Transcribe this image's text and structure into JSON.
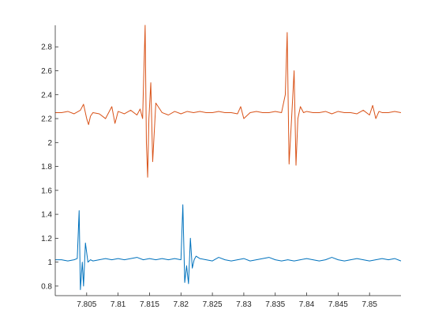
{
  "chart_data": {
    "type": "line",
    "title": "",
    "xlabel": "",
    "ylabel": "",
    "xlim": [
      7.8,
      7.855
    ],
    "ylim": [
      0.72,
      2.98
    ],
    "grid": false,
    "legend": "none",
    "x_ticks": [
      7.805,
      7.81,
      7.815,
      7.82,
      7.825,
      7.83,
      7.835,
      7.84,
      7.845,
      7.85
    ],
    "x_tick_labels": [
      "7.805",
      "7.81",
      "7.815",
      "7.82",
      "7.825",
      "7.83",
      "7.835",
      "7.84",
      "7.845",
      "7.85"
    ],
    "y_ticks": [
      0.8,
      1.0,
      1.2,
      1.4,
      1.6,
      1.8,
      2.0,
      2.2,
      2.4,
      2.6,
      2.8
    ],
    "y_tick_labels": [
      "0.8",
      "1",
      "1.2",
      "1.4",
      "1.6",
      "1.8",
      "2",
      "2.2",
      "2.4",
      "2.6",
      "2.8"
    ],
    "series": [
      {
        "color": "#D95319",
        "x": [
          7.8,
          7.801,
          7.802,
          7.803,
          7.804,
          7.8045,
          7.805,
          7.8053,
          7.8056,
          7.806,
          7.807,
          7.808,
          7.809,
          7.8095,
          7.81,
          7.8105,
          7.811,
          7.812,
          7.813,
          7.8135,
          7.8139,
          7.8141,
          7.8143,
          7.8145,
          7.8147,
          7.8149,
          7.8152,
          7.8155,
          7.816,
          7.817,
          7.818,
          7.819,
          7.82,
          7.821,
          7.822,
          7.823,
          7.824,
          7.825,
          7.826,
          7.827,
          7.828,
          7.829,
          7.8295,
          7.83,
          7.831,
          7.832,
          7.833,
          7.834,
          7.835,
          7.836,
          7.8366,
          7.8369,
          7.8372,
          7.8376,
          7.838,
          7.8383,
          7.8386,
          7.839,
          7.8395,
          7.84,
          7.841,
          7.842,
          7.843,
          7.844,
          7.845,
          7.846,
          7.847,
          7.848,
          7.849,
          7.85,
          7.8505,
          7.851,
          7.8515,
          7.852,
          7.853,
          7.854,
          7.855
        ],
        "y": [
          2.25,
          2.25,
          2.26,
          2.24,
          2.27,
          2.32,
          2.2,
          2.15,
          2.22,
          2.25,
          2.24,
          2.2,
          2.3,
          2.16,
          2.26,
          2.25,
          2.24,
          2.27,
          2.23,
          2.28,
          2.2,
          2.6,
          2.98,
          2.0,
          1.71,
          2.2,
          2.5,
          1.84,
          2.33,
          2.25,
          2.23,
          2.26,
          2.24,
          2.26,
          2.25,
          2.26,
          2.25,
          2.25,
          2.26,
          2.25,
          2.25,
          2.24,
          2.3,
          2.2,
          2.25,
          2.26,
          2.25,
          2.25,
          2.26,
          2.25,
          2.4,
          2.92,
          1.82,
          2.2,
          2.6,
          1.81,
          2.2,
          2.3,
          2.25,
          2.26,
          2.25,
          2.25,
          2.26,
          2.24,
          2.26,
          2.25,
          2.25,
          2.24,
          2.27,
          2.23,
          2.31,
          2.2,
          2.26,
          2.25,
          2.25,
          2.26,
          2.25
        ]
      },
      {
        "color": "#0072BD",
        "x": [
          7.8,
          7.801,
          7.802,
          7.803,
          7.8035,
          7.8038,
          7.804,
          7.8043,
          7.8045,
          7.8048,
          7.8052,
          7.8056,
          7.806,
          7.807,
          7.808,
          7.809,
          7.81,
          7.811,
          7.812,
          7.813,
          7.814,
          7.815,
          7.816,
          7.817,
          7.818,
          7.819,
          7.82,
          7.8203,
          7.8206,
          7.8209,
          7.8212,
          7.8215,
          7.8218,
          7.8221,
          7.8224,
          7.823,
          7.824,
          7.825,
          7.826,
          7.827,
          7.828,
          7.829,
          7.83,
          7.831,
          7.832,
          7.833,
          7.834,
          7.835,
          7.836,
          7.837,
          7.838,
          7.839,
          7.84,
          7.841,
          7.842,
          7.843,
          7.844,
          7.845,
          7.846,
          7.847,
          7.848,
          7.849,
          7.85,
          7.851,
          7.852,
          7.853,
          7.854,
          7.855
        ],
        "y": [
          1.02,
          1.02,
          1.01,
          1.02,
          1.03,
          1.43,
          0.77,
          1.0,
          0.8,
          1.16,
          1.0,
          1.02,
          1.01,
          1.02,
          1.03,
          1.02,
          1.03,
          1.02,
          1.03,
          1.04,
          1.02,
          1.03,
          1.02,
          1.03,
          1.02,
          1.03,
          1.02,
          1.48,
          0.83,
          0.97,
          0.82,
          1.2,
          0.95,
          1.02,
          1.05,
          1.03,
          1.02,
          1.01,
          1.04,
          1.02,
          1.01,
          1.02,
          1.03,
          1.01,
          1.02,
          1.03,
          1.04,
          1.02,
          1.01,
          1.02,
          1.01,
          1.02,
          1.03,
          1.02,
          1.01,
          1.02,
          1.04,
          1.02,
          1.01,
          1.02,
          1.03,
          1.02,
          1.01,
          1.02,
          1.03,
          1.02,
          1.03,
          1.01
        ]
      }
    ]
  }
}
